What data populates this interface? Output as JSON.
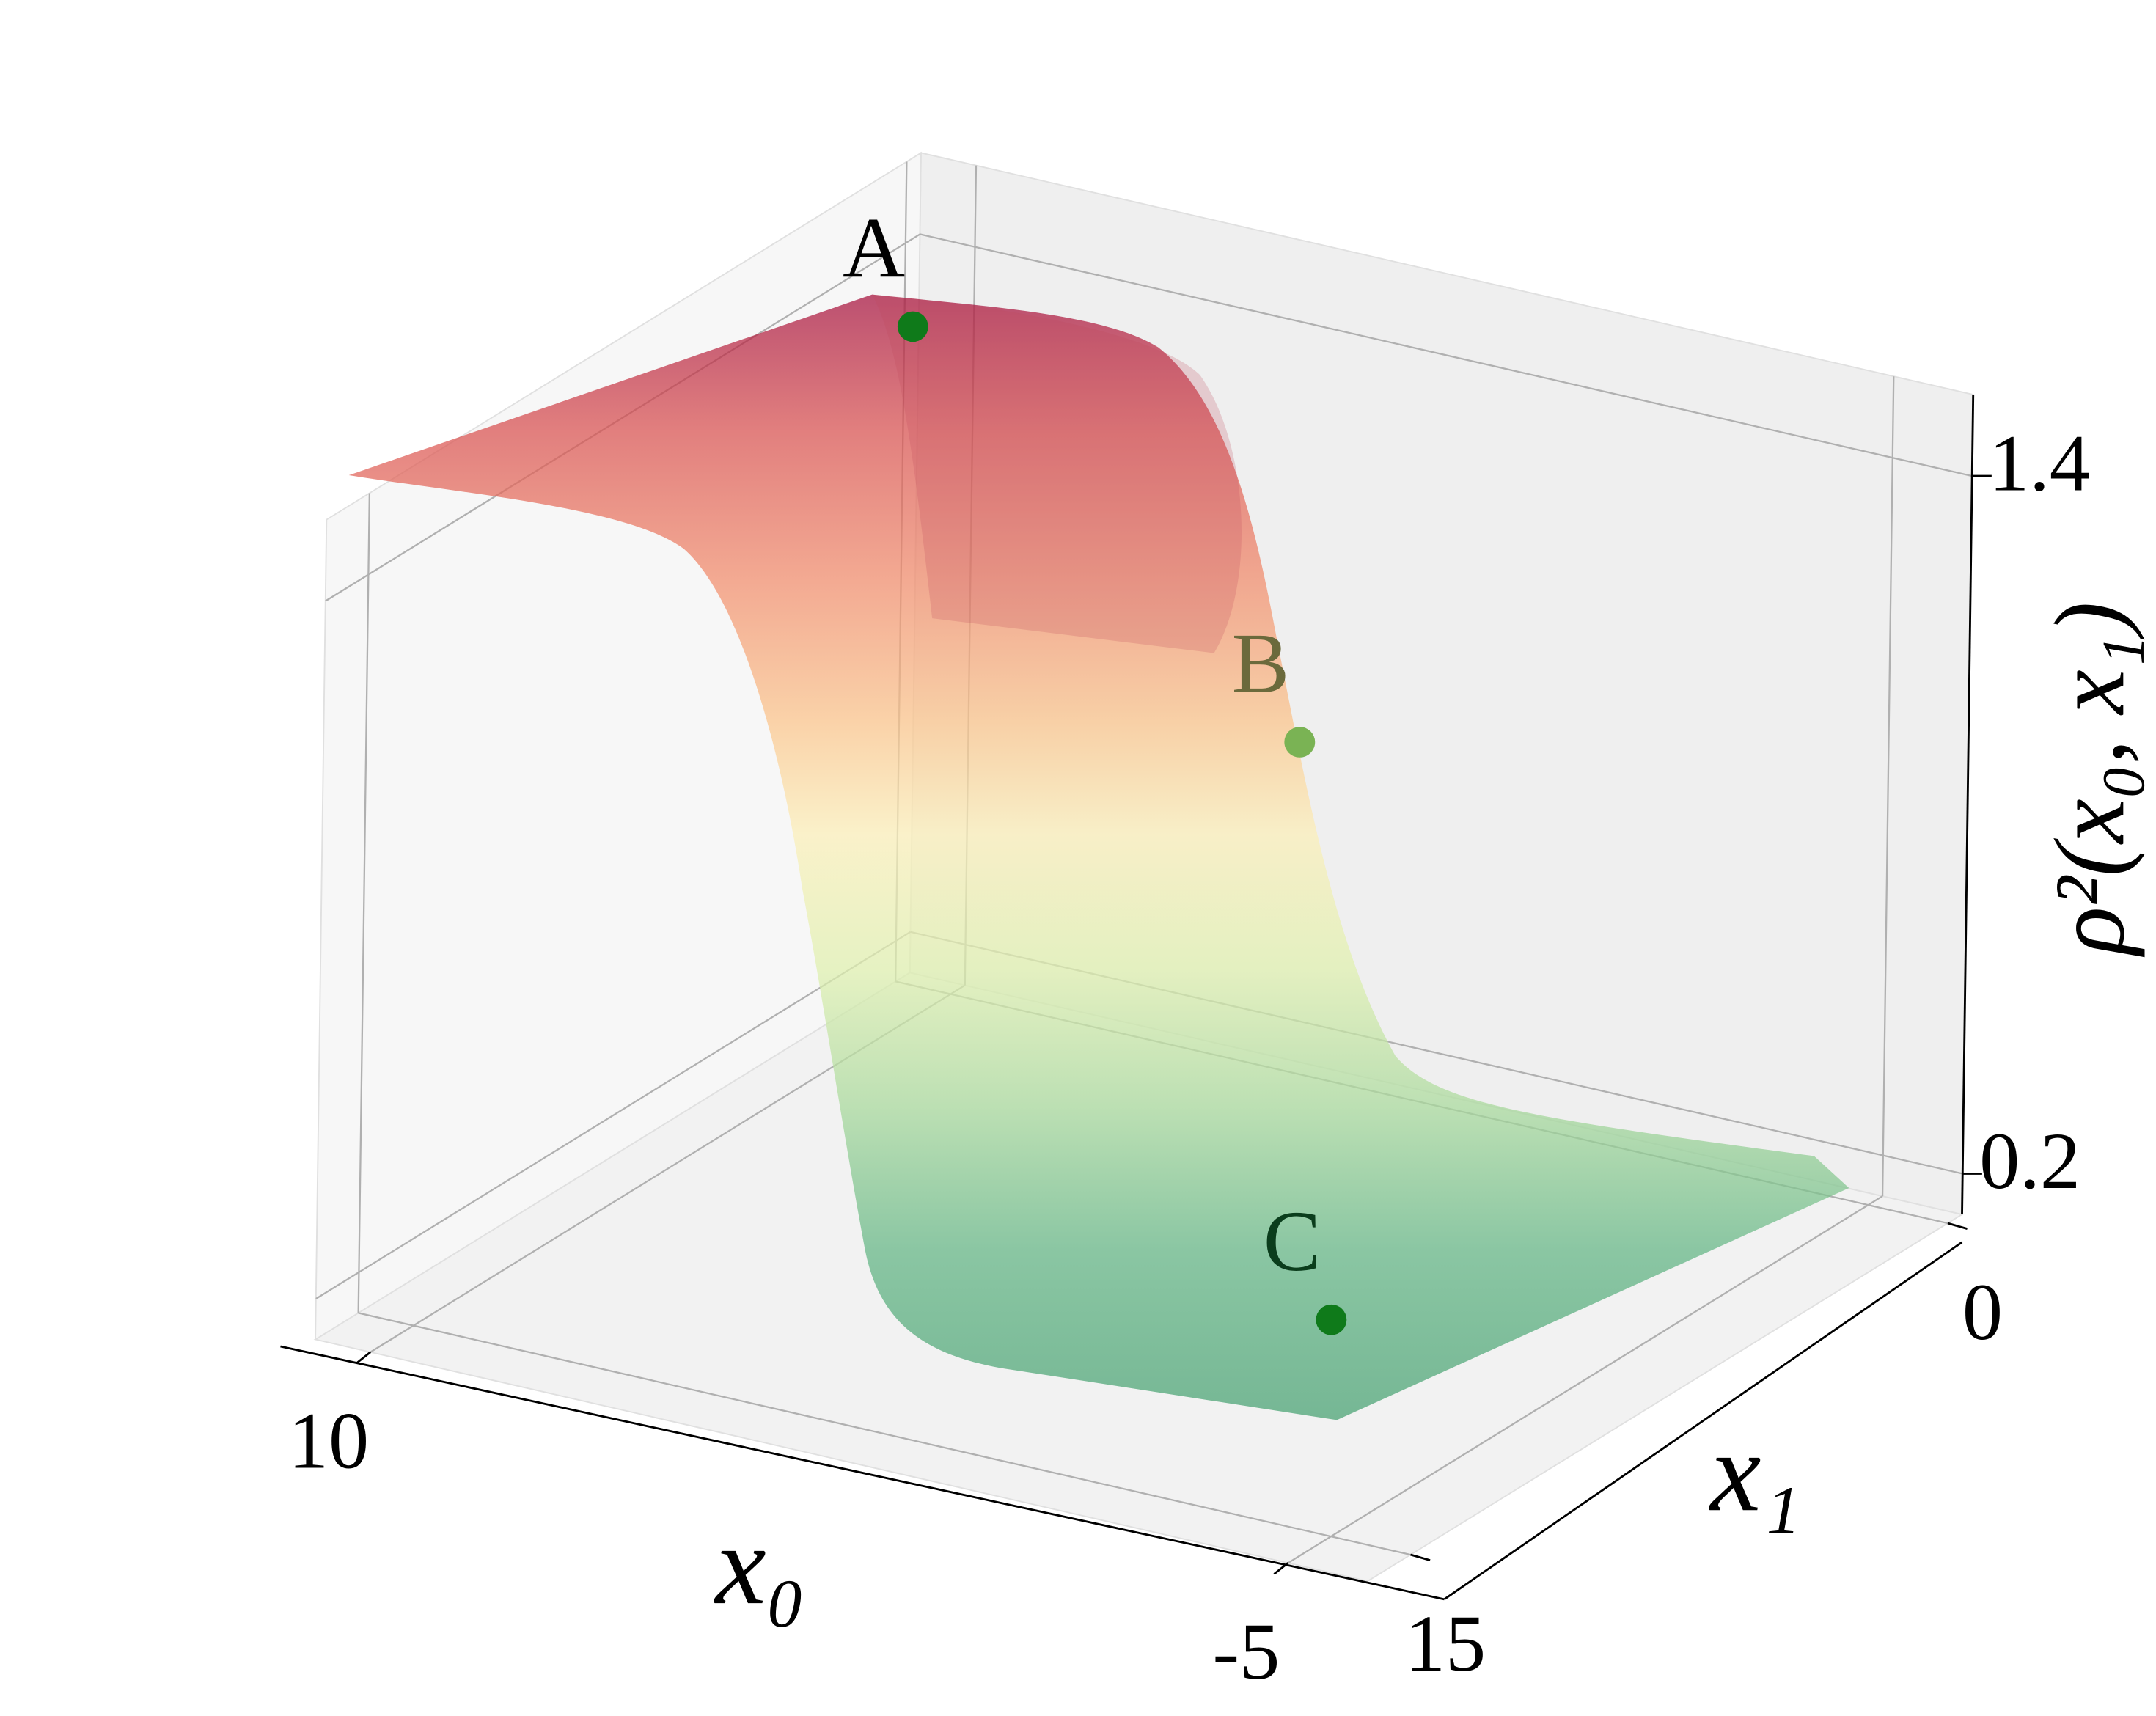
{
  "chart_data": {
    "type": "surface3d",
    "xlabel": "x₀",
    "ylabel": "x₁",
    "zlabel": "ρ²(x₀, x₁)",
    "xlim": [
      -6.3,
      10.9
    ],
    "xticks": [
      10,
      -5
    ],
    "ylim": [
      -0.4,
      16.2
    ],
    "yticks": [
      0,
      15
    ],
    "zlim": [
      0.13,
      1.54
    ],
    "zticks": [
      0.2,
      1.4
    ],
    "grid": true,
    "points": [
      {
        "label": "A",
        "x": 9.2,
        "y": 2.7,
        "z": 1.4,
        "color": "#0f7a1a"
      },
      {
        "label": "B",
        "x": 3.25,
        "y": 1.93,
        "z": 0.8,
        "color": "#7ab354"
      },
      {
        "label": "C",
        "x": -1.6,
        "y": 9.2,
        "z": 0.2,
        "color": "#0f7a1a"
      }
    ]
  }
}
